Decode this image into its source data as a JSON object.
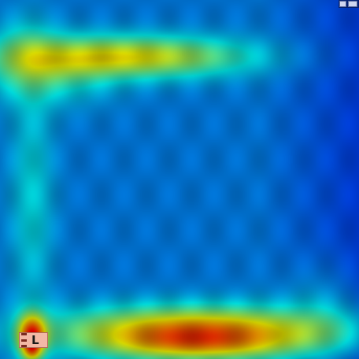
{
  "image": {
    "kind": "x-ray with heatmap overlay",
    "colors": {
      "low": "#0a1a7a",
      "mid": "#2bc4c4",
      "high": "#f2d23a",
      "peak": "#d8342a"
    }
  },
  "overlay_label": {
    "letter": "L"
  }
}
